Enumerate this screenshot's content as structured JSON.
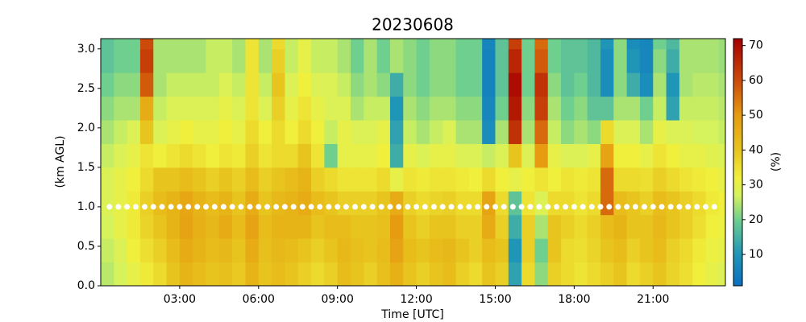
{
  "chart_data": {
    "type": "heatmap",
    "title": "20230608",
    "xlabel": "Time [UTC]",
    "ylabel": "(km AGL)",
    "colorbar_label": "(%)",
    "xlim": [
      0,
      23.75
    ],
    "ylim": [
      0,
      3.13
    ],
    "xticks": [
      {
        "value": 3,
        "label": "03:00"
      },
      {
        "value": 6,
        "label": "06:00"
      },
      {
        "value": 9,
        "label": "09:00"
      },
      {
        "value": 12,
        "label": "12:00"
      },
      {
        "value": 15,
        "label": "15:00"
      },
      {
        "value": 18,
        "label": "18:00"
      },
      {
        "value": 21,
        "label": "21:00"
      }
    ],
    "yticks": [
      {
        "value": 0,
        "label": "0.0"
      },
      0.5,
      {
        "value": 1,
        "label": "1.0"
      },
      1.5,
      {
        "value": 2,
        "label": "2.0"
      },
      2.5,
      {
        "value": 3,
        "label": "3.0"
      }
    ],
    "clim": [
      1,
      72
    ],
    "cticks": [
      10,
      20,
      30,
      40,
      50,
      60,
      70
    ],
    "colorscale": [
      [
        0,
        "#0a6fc2"
      ],
      [
        10,
        "#1f95b8"
      ],
      [
        20,
        "#6fcf8f"
      ],
      [
        27,
        "#d6f25c"
      ],
      [
        32,
        "#f0ef3c"
      ],
      [
        40,
        "#e8c41e"
      ],
      [
        50,
        "#e69b10"
      ],
      [
        60,
        "#cc4a0a"
      ],
      [
        72,
        "#a50000"
      ]
    ],
    "xbins": [
      0,
      0.5,
      1,
      1.5,
      2,
      2.5,
      3,
      3.5,
      4,
      4.5,
      5,
      5.5,
      6,
      6.5,
      7,
      7.5,
      8,
      8.5,
      9,
      9.5,
      10,
      10.5,
      11,
      11.5,
      12,
      12.5,
      13,
      13.5,
      14,
      14.5,
      15,
      15.5,
      16,
      16.5,
      17,
      17.5,
      18,
      18.5,
      19,
      19.5,
      20,
      20.5,
      21,
      21.5,
      22,
      22.5,
      23,
      23.5,
      23.75
    ],
    "ybins": [
      0,
      0.3,
      0.6,
      0.9,
      1.2,
      1.5,
      1.8,
      2.1,
      2.4,
      2.7,
      3.0,
      3.13
    ],
    "z": [
      [
        25,
        27,
        30,
        33,
        36,
        40,
        44,
        42,
        40,
        41,
        39,
        44,
        40,
        42,
        40,
        38,
        36,
        38,
        42,
        40,
        38,
        41,
        45,
        40,
        38,
        40,
        42,
        38,
        36,
        40,
        38,
        12,
        36,
        22,
        38,
        36,
        34,
        36,
        38,
        40,
        36,
        38,
        40,
        37,
        35,
        32,
        30,
        28
      ],
      [
        26,
        28,
        32,
        35,
        38,
        42,
        46,
        44,
        42,
        43,
        40,
        46,
        41,
        43,
        42,
        40,
        38,
        40,
        43,
        41,
        40,
        42,
        48,
        42,
        40,
        42,
        43,
        40,
        38,
        42,
        40,
        10,
        38,
        20,
        40,
        36,
        35,
        37,
        40,
        42,
        38,
        40,
        42,
        38,
        36,
        33,
        31,
        30
      ],
      [
        27,
        30,
        33,
        37,
        40,
        44,
        48,
        45,
        43,
        46,
        42,
        48,
        42,
        44,
        44,
        44,
        40,
        42,
        42,
        40,
        40,
        41,
        50,
        40,
        38,
        40,
        40,
        38,
        38,
        46,
        38,
        14,
        38,
        24,
        40,
        38,
        36,
        38,
        42,
        44,
        40,
        40,
        43,
        40,
        38,
        35,
        32,
        31
      ],
      [
        28,
        30,
        33,
        38,
        42,
        44,
        47,
        44,
        42,
        44,
        40,
        46,
        40,
        43,
        44,
        46,
        42,
        40,
        38,
        38,
        38,
        40,
        46,
        38,
        36,
        37,
        38,
        36,
        36,
        48,
        36,
        18,
        34,
        28,
        36,
        36,
        34,
        36,
        56,
        42,
        40,
        38,
        42,
        40,
        38,
        36,
        33,
        32
      ],
      [
        28,
        30,
        32,
        36,
        40,
        40,
        42,
        40,
        38,
        40,
        38,
        42,
        38,
        40,
        42,
        44,
        38,
        36,
        34,
        34,
        34,
        36,
        30,
        34,
        33,
        34,
        34,
        33,
        32,
        36,
        32,
        30,
        32,
        34,
        32,
        34,
        33,
        34,
        56,
        36,
        36,
        35,
        38,
        36,
        34,
        33,
        32,
        30
      ],
      [
        26,
        28,
        30,
        34,
        32,
        34,
        36,
        34,
        32,
        34,
        33,
        38,
        34,
        36,
        36,
        40,
        34,
        20,
        30,
        30,
        30,
        32,
        14,
        30,
        28,
        30,
        30,
        28,
        28,
        26,
        28,
        40,
        28,
        50,
        30,
        28,
        28,
        30,
        48,
        32,
        32,
        30,
        34,
        32,
        30,
        30,
        29,
        28
      ],
      [
        24,
        26,
        28,
        40,
        28,
        30,
        32,
        30,
        30,
        32,
        30,
        36,
        32,
        36,
        32,
        36,
        32,
        26,
        30,
        28,
        28,
        30,
        12,
        26,
        24,
        26,
        28,
        24,
        24,
        8,
        24,
        64,
        24,
        56,
        26,
        22,
        24,
        22,
        36,
        28,
        28,
        24,
        30,
        28,
        28,
        27,
        27,
        26
      ],
      [
        22,
        24,
        24,
        46,
        26,
        28,
        28,
        28,
        28,
        30,
        28,
        34,
        28,
        38,
        30,
        34,
        30,
        28,
        28,
        24,
        26,
        26,
        10,
        24,
        22,
        24,
        24,
        22,
        22,
        6,
        20,
        68,
        22,
        62,
        24,
        20,
        22,
        18,
        18,
        24,
        24,
        20,
        26,
        12,
        26,
        26,
        26,
        25
      ],
      [
        20,
        22,
        22,
        58,
        24,
        26,
        26,
        26,
        26,
        28,
        26,
        34,
        26,
        40,
        28,
        32,
        28,
        28,
        26,
        22,
        24,
        22,
        14,
        22,
        20,
        22,
        22,
        20,
        20,
        5,
        18,
        70,
        20,
        64,
        22,
        18,
        20,
        16,
        8,
        22,
        14,
        8,
        24,
        10,
        24,
        25,
        25,
        24
      ],
      [
        18,
        20,
        20,
        62,
        24,
        24,
        24,
        24,
        26,
        26,
        24,
        34,
        24,
        38,
        26,
        30,
        26,
        26,
        24,
        20,
        24,
        20,
        24,
        22,
        20,
        22,
        22,
        20,
        20,
        5,
        18,
        66,
        20,
        58,
        20,
        18,
        18,
        16,
        8,
        22,
        10,
        6,
        22,
        14,
        24,
        24,
        24,
        23
      ],
      [
        18,
        20,
        20,
        60,
        24,
        24,
        24,
        24,
        26,
        26,
        24,
        34,
        24,
        36,
        26,
        30,
        26,
        26,
        24,
        20,
        24,
        20,
        24,
        22,
        20,
        22,
        22,
        20,
        20,
        6,
        18,
        62,
        20,
        56,
        20,
        18,
        18,
        16,
        10,
        22,
        8,
        6,
        20,
        16,
        24,
        24,
        24,
        23
      ]
    ],
    "markers": {
      "color": "#ffffff",
      "x": [
        0.33,
        0.67,
        1,
        1.33,
        1.67,
        2,
        2.33,
        2.67,
        3,
        3.33,
        3.67,
        4,
        4.33,
        4.67,
        5,
        5.33,
        5.67,
        6,
        6.33,
        6.67,
        7,
        7.33,
        7.67,
        8,
        8.33,
        8.67,
        9,
        9.33,
        9.67,
        10,
        10.33,
        10.67,
        11,
        11.33,
        11.67,
        12,
        12.33,
        12.67,
        13,
        13.33,
        13.67,
        14,
        14.33,
        14.67,
        15,
        15.33,
        15.67,
        16,
        16.33,
        16.67,
        17,
        17.33,
        17.67,
        18,
        18.33,
        18.67,
        19,
        19.33,
        19.67,
        20,
        20.33,
        20.67,
        21,
        21.33,
        21.67,
        22,
        22.33,
        22.67,
        23,
        23.33
      ],
      "y": [
        1,
        1,
        1,
        1,
        1,
        1,
        1,
        1,
        1,
        1,
        1,
        1,
        1,
        1,
        1,
        1,
        1,
        1,
        1,
        1,
        1,
        1,
        1,
        1,
        1,
        1,
        1,
        1,
        1,
        1,
        1,
        1,
        1,
        1,
        1,
        1,
        1,
        1,
        1,
        1,
        1,
        1,
        1,
        1,
        1,
        1,
        1,
        1,
        1,
        1,
        1,
        1,
        1,
        1,
        1,
        1,
        1,
        1,
        1,
        1,
        1,
        1,
        1,
        1,
        1,
        1,
        1,
        1,
        1,
        1
      ]
    }
  }
}
